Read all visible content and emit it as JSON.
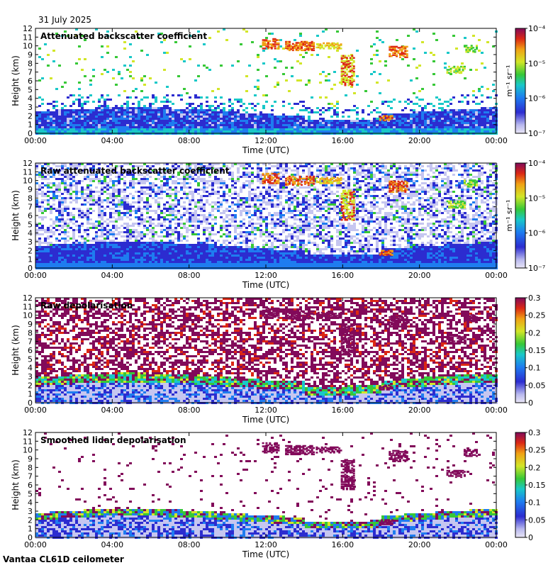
{
  "date": "31 July 2025",
  "footer": "Vantaa CL61D ceilometer",
  "colors": {
    "background": "#ffffff",
    "jet": [
      "#e9e6f6",
      "#c6c6f0",
      "#2c2cd0",
      "#1e7cf0",
      "#19c8c8",
      "#37c837",
      "#d2e628",
      "#f0a014",
      "#dc2814",
      "#820a5a"
    ]
  },
  "chart_data": [
    {
      "type": "heatmap",
      "title": "Attenuated backscatter coefficient",
      "xlabel": "Time (UTC)",
      "ylabel": "Height (km)",
      "xticks": [
        "00:00",
        "04:00",
        "08:00",
        "12:00",
        "16:00",
        "20:00",
        "00:00"
      ],
      "yticks": [
        "0",
        "1",
        "2",
        "3",
        "4",
        "5",
        "6",
        "7",
        "8",
        "9",
        "10",
        "11",
        "12"
      ],
      "ylim": [
        0,
        12
      ],
      "colorbar": {
        "scale": "log",
        "range": [
          1e-07,
          0.0001
        ],
        "labels": [
          "10⁻⁴",
          "10⁻⁵",
          "10⁻⁶",
          "10⁻⁷"
        ],
        "unit": "m⁻¹ sr⁻¹"
      }
    },
    {
      "type": "heatmap",
      "title": "Raw attenuated backscatter coefficient",
      "xlabel": "Time (UTC)",
      "ylabel": "Height (km)",
      "xticks": [
        "00:00",
        "04:00",
        "08:00",
        "12:00",
        "16:00",
        "20:00",
        "00:00"
      ],
      "yticks": [
        "0",
        "1",
        "2",
        "3",
        "4",
        "5",
        "6",
        "7",
        "8",
        "9",
        "10",
        "11",
        "12"
      ],
      "ylim": [
        0,
        12
      ],
      "colorbar": {
        "scale": "log",
        "range": [
          1e-07,
          0.0001
        ],
        "labels": [
          "10⁻⁴",
          "10⁻⁵",
          "10⁻⁶",
          "10⁻⁷"
        ],
        "unit": "m⁻¹ sr⁻¹"
      }
    },
    {
      "type": "heatmap",
      "title": "Raw depolarisation",
      "xlabel": "Time (UTC)",
      "ylabel": "Height (km)",
      "xticks": [
        "00:00",
        "04:00",
        "08:00",
        "12:00",
        "16:00",
        "20:00",
        "00:00"
      ],
      "yticks": [
        "0",
        "1",
        "2",
        "3",
        "4",
        "5",
        "6",
        "7",
        "8",
        "9",
        "10",
        "11",
        "12"
      ],
      "ylim": [
        0,
        12
      ],
      "colorbar": {
        "scale": "linear",
        "range": [
          0,
          0.3
        ],
        "labels": [
          "0.3",
          "0.25",
          "0.2",
          "0.15",
          "0.1",
          "0.05",
          "0"
        ],
        "unit": ""
      }
    },
    {
      "type": "heatmap",
      "title": "Smoothed lidar depolarisation",
      "xlabel": "Time (UTC)",
      "ylabel": "Height (km)",
      "xticks": [
        "00:00",
        "04:00",
        "08:00",
        "12:00",
        "16:00",
        "20:00",
        "00:00"
      ],
      "yticks": [
        "0",
        "1",
        "2",
        "3",
        "4",
        "5",
        "6",
        "7",
        "8",
        "9",
        "10",
        "11",
        "12"
      ],
      "ylim": [
        0,
        12
      ],
      "colorbar": {
        "scale": "linear",
        "range": [
          0,
          0.3
        ],
        "labels": [
          "0.3",
          "0.25",
          "0.2",
          "0.15",
          "0.1",
          "0.05",
          "0"
        ],
        "unit": ""
      }
    }
  ]
}
